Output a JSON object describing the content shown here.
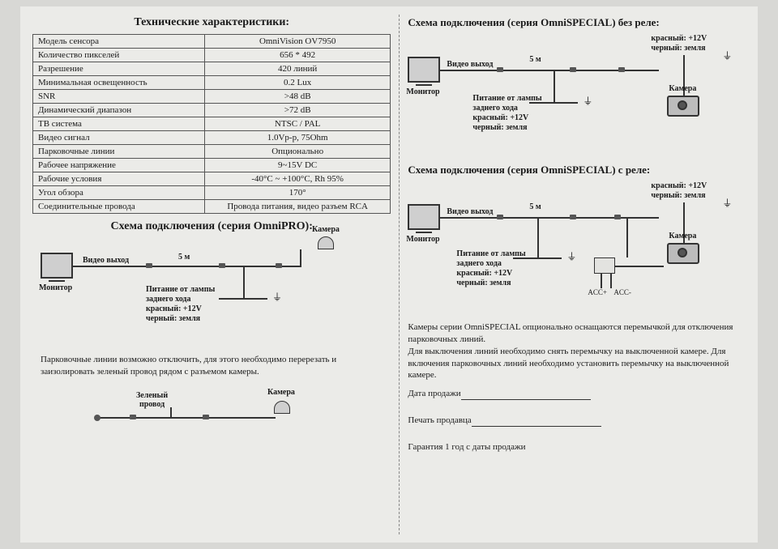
{
  "left": {
    "spec_title": "Технические характеристики:",
    "spec_rows": [
      [
        "Модель сенсора",
        "OmniVision OV7950"
      ],
      [
        "Количество пикселей",
        "656 * 492"
      ],
      [
        "Разрешение",
        "420 линий"
      ],
      [
        "Минимальная освещенность",
        "0.2 Lux"
      ],
      [
        "SNR",
        ">48 dB"
      ],
      [
        "Динамический диапазон",
        ">72 dB"
      ],
      [
        "ТВ система",
        "NTSC / PAL"
      ],
      [
        "Видео сигнал",
        "1.0Vp-p, 75Ohm"
      ],
      [
        "Парковочные линии",
        "Опционально"
      ],
      [
        "Рабочее напряжение",
        "9~15V DC"
      ],
      [
        "Рабочие условия",
        "-40°C ~ +100°C, Rh 95%"
      ],
      [
        "Угол обзора",
        "170°"
      ],
      [
        "Соединительные провода",
        "Провода питания, видео разъем RCA"
      ]
    ],
    "diag1_title": "Схема подключения (серия OmniPRO):",
    "diag1": {
      "monitor": "Монитор",
      "video_out": "Видео выход",
      "five_m": "5 м",
      "camera": "Камера",
      "power_lines": "Питание от лампы\nзаднего хода\nкрасный: +12V\nчерный: земля"
    },
    "note1": "Парковочные линии возможно отключить, для этого необходимо перерезать и заизолировать зеленый провод рядом с разъемом камеры.",
    "diag2": {
      "green_wire": "Зеленый\nпровод",
      "camera": "Камера"
    }
  },
  "right": {
    "diagA_title": "Схема подключения (серия OmniSPECIAL) без реле:",
    "diagB_title": "Схема подключения (серия OmniSPECIAL) с реле:",
    "labels": {
      "monitor": "Монитор",
      "video_out": "Видео выход",
      "five_m": "5 м",
      "camera": "Камера",
      "red12v": "красный: +12V",
      "black_gnd": "черный: земля",
      "power_lines": "Питание от лампы\nзаднего хода\nкрасный: +12V\nчерный: земля",
      "acc_plus": "ACC+",
      "acc_minus": "ACC-"
    },
    "note2": "Камеры серии OmniSPECIAL опционально оснащаются перемычкой для отключения парковочных линий.\nДля выключения линий необходимо снять перемычку на выключенной камере. Для включения парковочных линий необходимо установить перемычку на выключенной камере.",
    "sale_date": "Дата продажи",
    "seller_stamp": "Печать продавца",
    "warranty": "Гарантия 1 год с даты продажи"
  },
  "colors": {
    "page_bg": "#ebebe8",
    "outer_bg": "#d8d8d5",
    "ink": "#1a1a1a",
    "border": "#555"
  }
}
